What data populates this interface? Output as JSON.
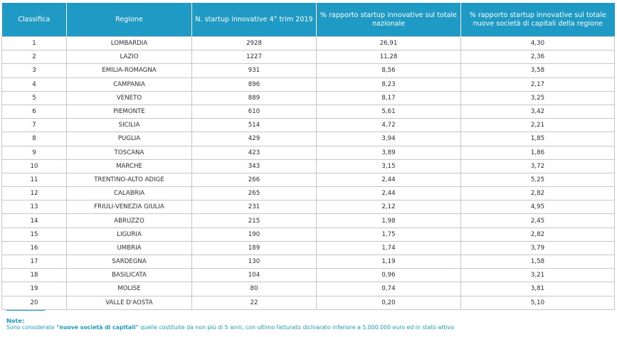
{
  "table": {
    "headers": [
      "Classifica",
      "Regione",
      "N. startup innovative 4° trim 2019",
      "% rapporto startup innovative sul totale nazionale",
      "% rapporto startup innovative sul totale nuove società di capitali della regione"
    ],
    "rows": [
      [
        "1",
        "LOMBARDIA",
        "2928",
        "26,91",
        "4,30"
      ],
      [
        "2",
        "LAZIO",
        "1227",
        "11,28",
        "2,36"
      ],
      [
        "3",
        "EMILIA-ROMAGNA",
        "931",
        "8,56",
        "3,58"
      ],
      [
        "4",
        "CAMPANIA",
        "896",
        "8,23",
        "2,17"
      ],
      [
        "5",
        "VENETO",
        "889",
        "8,17",
        "3,25"
      ],
      [
        "6",
        "PIEMONTE",
        "610",
        "5,61",
        "3,42"
      ],
      [
        "7",
        "SICILIA",
        "514",
        "4,72",
        "2,21"
      ],
      [
        "8",
        "PUGLIA",
        "429",
        "3,94",
        "1,85"
      ],
      [
        "9",
        "TOSCANA",
        "423",
        "3,89",
        "1,86"
      ],
      [
        "10",
        "MARCHE",
        "343",
        "3,15",
        "3,72"
      ],
      [
        "11",
        "TRENTINO-ALTO ADIGE",
        "266",
        "2,44",
        "5,25"
      ],
      [
        "12",
        "CALABRIA",
        "265",
        "2,44",
        "2,82"
      ],
      [
        "13",
        "FRIULI-VENEZIA GIULIA",
        "231",
        "2,12",
        "4,95"
      ],
      [
        "14",
        "ABRUZZO",
        "215",
        "1,98",
        "2,45"
      ],
      [
        "15",
        "LIGURIA",
        "190",
        "1,75",
        "2,82"
      ],
      [
        "16",
        "UMBRIA",
        "189",
        "1,74",
        "3,79"
      ],
      [
        "17",
        "SARDEGNA",
        "130",
        "1,19",
        "1,58"
      ],
      [
        "18",
        "BASILICATA",
        "104",
        "0,96",
        "3,21"
      ],
      [
        "19",
        "MOLISE",
        "80",
        "0,74",
        "3,81"
      ],
      [
        "20",
        "VALLE D'AOSTA",
        "22",
        "0,20",
        "5,10"
      ]
    ]
  },
  "note": {
    "title": "Note:",
    "prefix": "Sono considerate ",
    "highlight": "\"nuove società di capitali\"",
    "suffix": " quelle costituite da non più di 5 anni, con ultimo fatturato dichiarato inferiore a 5.000.000 euro ed in stato attivo"
  },
  "colors": {
    "header_bg": "#1f9ac4",
    "accent": "#1f9ac4",
    "grid": "#c7c7c7"
  }
}
